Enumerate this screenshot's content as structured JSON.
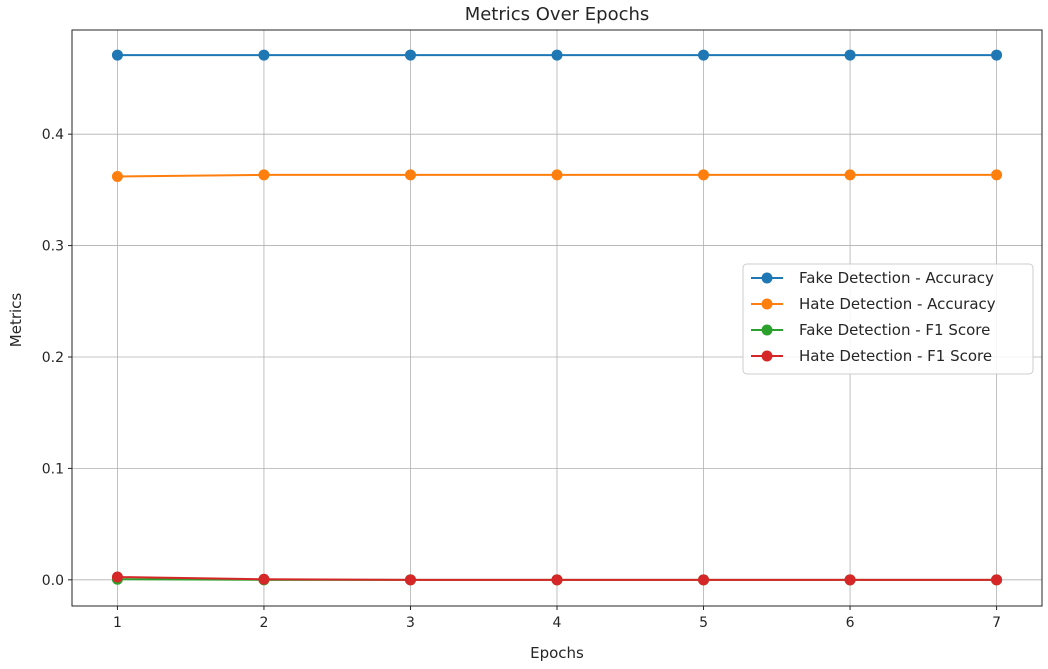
{
  "chart_data": {
    "type": "line",
    "title": "Metrics Over Epochs",
    "xlabel": "Epochs",
    "ylabel": "Metrics",
    "x": [
      1,
      2,
      3,
      4,
      5,
      6,
      7
    ],
    "x_ticks": [
      "1",
      "2",
      "3",
      "4",
      "5",
      "6",
      "7"
    ],
    "y_ticks": [
      "0.0",
      "0.1",
      "0.2",
      "0.3",
      "0.4"
    ],
    "y_tick_values": [
      0.0,
      0.1,
      0.2,
      0.3,
      0.4
    ],
    "xlim": [
      0.69,
      7.31
    ],
    "ylim": [
      -0.0235,
      0.4935
    ],
    "grid": true,
    "legend_position": "center-right",
    "series": [
      {
        "name": "Fake Detection - Accuracy",
        "color": "#1f77b4",
        "values": [
          0.471,
          0.471,
          0.471,
          0.471,
          0.471,
          0.471,
          0.471
        ]
      },
      {
        "name": "Hate Detection - Accuracy",
        "color": "#ff7f0e",
        "values": [
          0.362,
          0.3635,
          0.3635,
          0.3635,
          0.3635,
          0.3635,
          0.3635
        ]
      },
      {
        "name": "Fake Detection - F1 Score",
        "color": "#2ca02c",
        "values": [
          0.0005,
          0.0,
          0.0,
          0.0,
          0.0,
          0.0,
          0.0
        ]
      },
      {
        "name": "Hate Detection - F1 Score",
        "color": "#d62728",
        "values": [
          0.0025,
          0.0005,
          0.0,
          0.0,
          0.0,
          0.0,
          0.0
        ]
      }
    ]
  }
}
